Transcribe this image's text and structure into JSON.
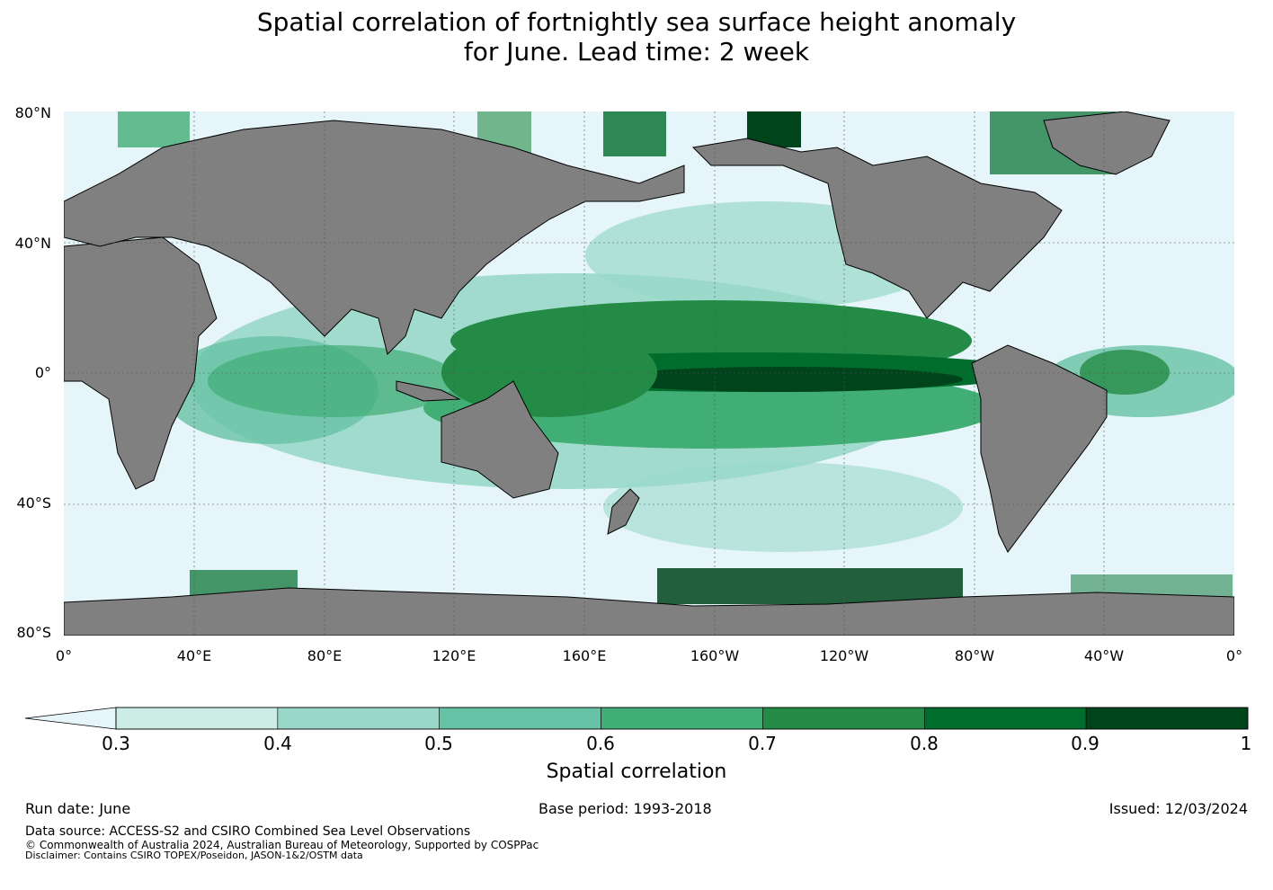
{
  "title_line1": "Spatial correlation of fortnightly sea surface height anomaly",
  "title_line2": "for June. Lead time: 2 week",
  "lat_labels": [
    "80°N",
    "40°N",
    "0°",
    "40°S",
    "80°S"
  ],
  "lon_labels": [
    "0°",
    "40°E",
    "80°E",
    "120°E",
    "160°E",
    "160°W",
    "120°W",
    "80°W",
    "40°W",
    "0°"
  ],
  "colorbar": {
    "label": "Spatial correlation",
    "ticks": [
      "0.3",
      "0.4",
      "0.5",
      "0.6",
      "0.7",
      "0.8",
      "0.9",
      "1"
    ],
    "colors": [
      "#ccece6",
      "#99d8c9",
      "#66c2a4",
      "#41ae76",
      "#238b45",
      "#006d2c",
      "#00441b"
    ],
    "under_color": "#e5f5f9"
  },
  "land_color": "#808080",
  "ocean_color": "#e5f5f9",
  "footer": {
    "run_date": "Run date: June",
    "base_period": "Base period: 1993-2018",
    "issued": "Issued: 12/03/2024",
    "data_source": "Data source: ACCESS-S2 and CSIRO Combined Sea Level Observations",
    "copyright": "© Commonwealth of Australia 2024, Australian Bureau of Meteorology, Supported by COSPPac",
    "disclaimer": "Disclaimer: Contains CSIRO TOPEX/Poseidon, JASON-1&2/OSTM data"
  }
}
